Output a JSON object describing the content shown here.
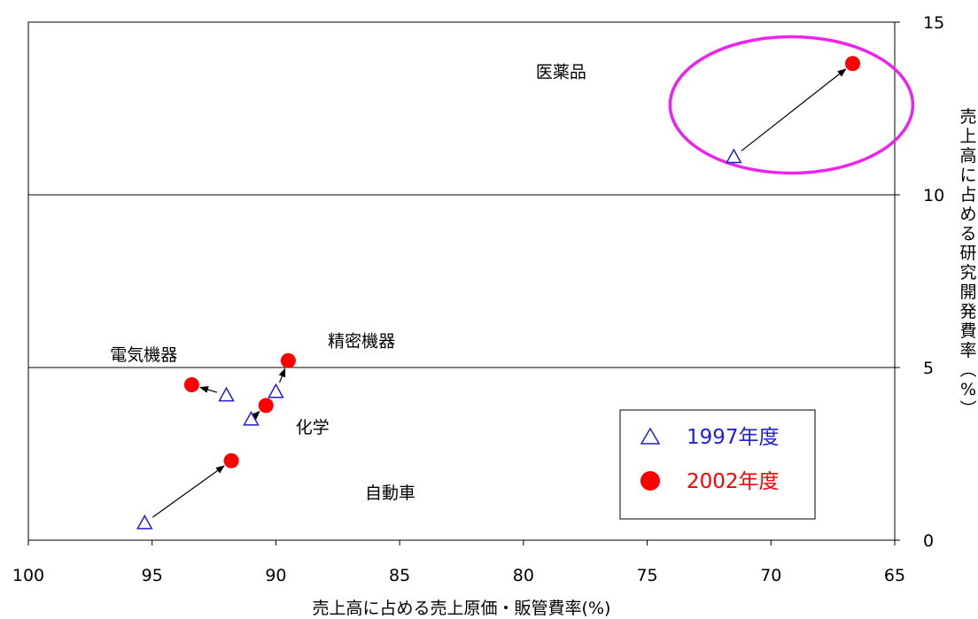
{
  "chart_data": {
    "type": "scatter",
    "xlabel": "売上高に占める売上原価・販管費率(%)",
    "ylabel": "売上高に占める研究開発費率（%）",
    "xlim": [
      100,
      65
    ],
    "x_reversed": true,
    "ylim": [
      0,
      15
    ],
    "x_ticks": [
      "100",
      "95",
      "90",
      "85",
      "80",
      "75",
      "70",
      "65"
    ],
    "y_ticks": [
      "0",
      "5",
      "10",
      "15"
    ],
    "grid": "horizontal",
    "legend_position": "bottom-right",
    "series": [
      {
        "name": "1997年度",
        "marker": "triangle-open",
        "color": "#1f1fd6",
        "points": [
          {
            "category": "医薬品",
            "x": 71.5,
            "y": 11.1
          },
          {
            "category": "精密機器",
            "x": 90.0,
            "y": 4.3
          },
          {
            "category": "化学",
            "x": 91.0,
            "y": 3.5
          },
          {
            "category": "電気機器",
            "x": 92.0,
            "y": 4.2
          },
          {
            "category": "自動車",
            "x": 95.3,
            "y": 0.5
          }
        ]
      },
      {
        "name": "2002年度",
        "marker": "circle-filled",
        "color": "#ff0000",
        "points": [
          {
            "category": "医薬品",
            "x": 66.7,
            "y": 13.8
          },
          {
            "category": "精密機器",
            "x": 89.5,
            "y": 5.2
          },
          {
            "category": "化学",
            "x": 90.4,
            "y": 3.9
          },
          {
            "category": "電気機器",
            "x": 93.4,
            "y": 4.5
          },
          {
            "category": "自動車",
            "x": 91.8,
            "y": 2.3
          }
        ]
      }
    ],
    "annotations": [
      {
        "text": "医薬品",
        "x": 79.5,
        "y": 13.4
      },
      {
        "text": "精密機器",
        "x": 87.9,
        "y": 5.6
      },
      {
        "text": "化学",
        "x": 89.2,
        "y": 3.1
      },
      {
        "text": "電気機器",
        "x": 96.7,
        "y": 5.2
      },
      {
        "text": "自動車",
        "x": 86.4,
        "y": 1.2
      }
    ],
    "highlight": {
      "category": "医薬品",
      "color": "#ee22ee"
    }
  }
}
